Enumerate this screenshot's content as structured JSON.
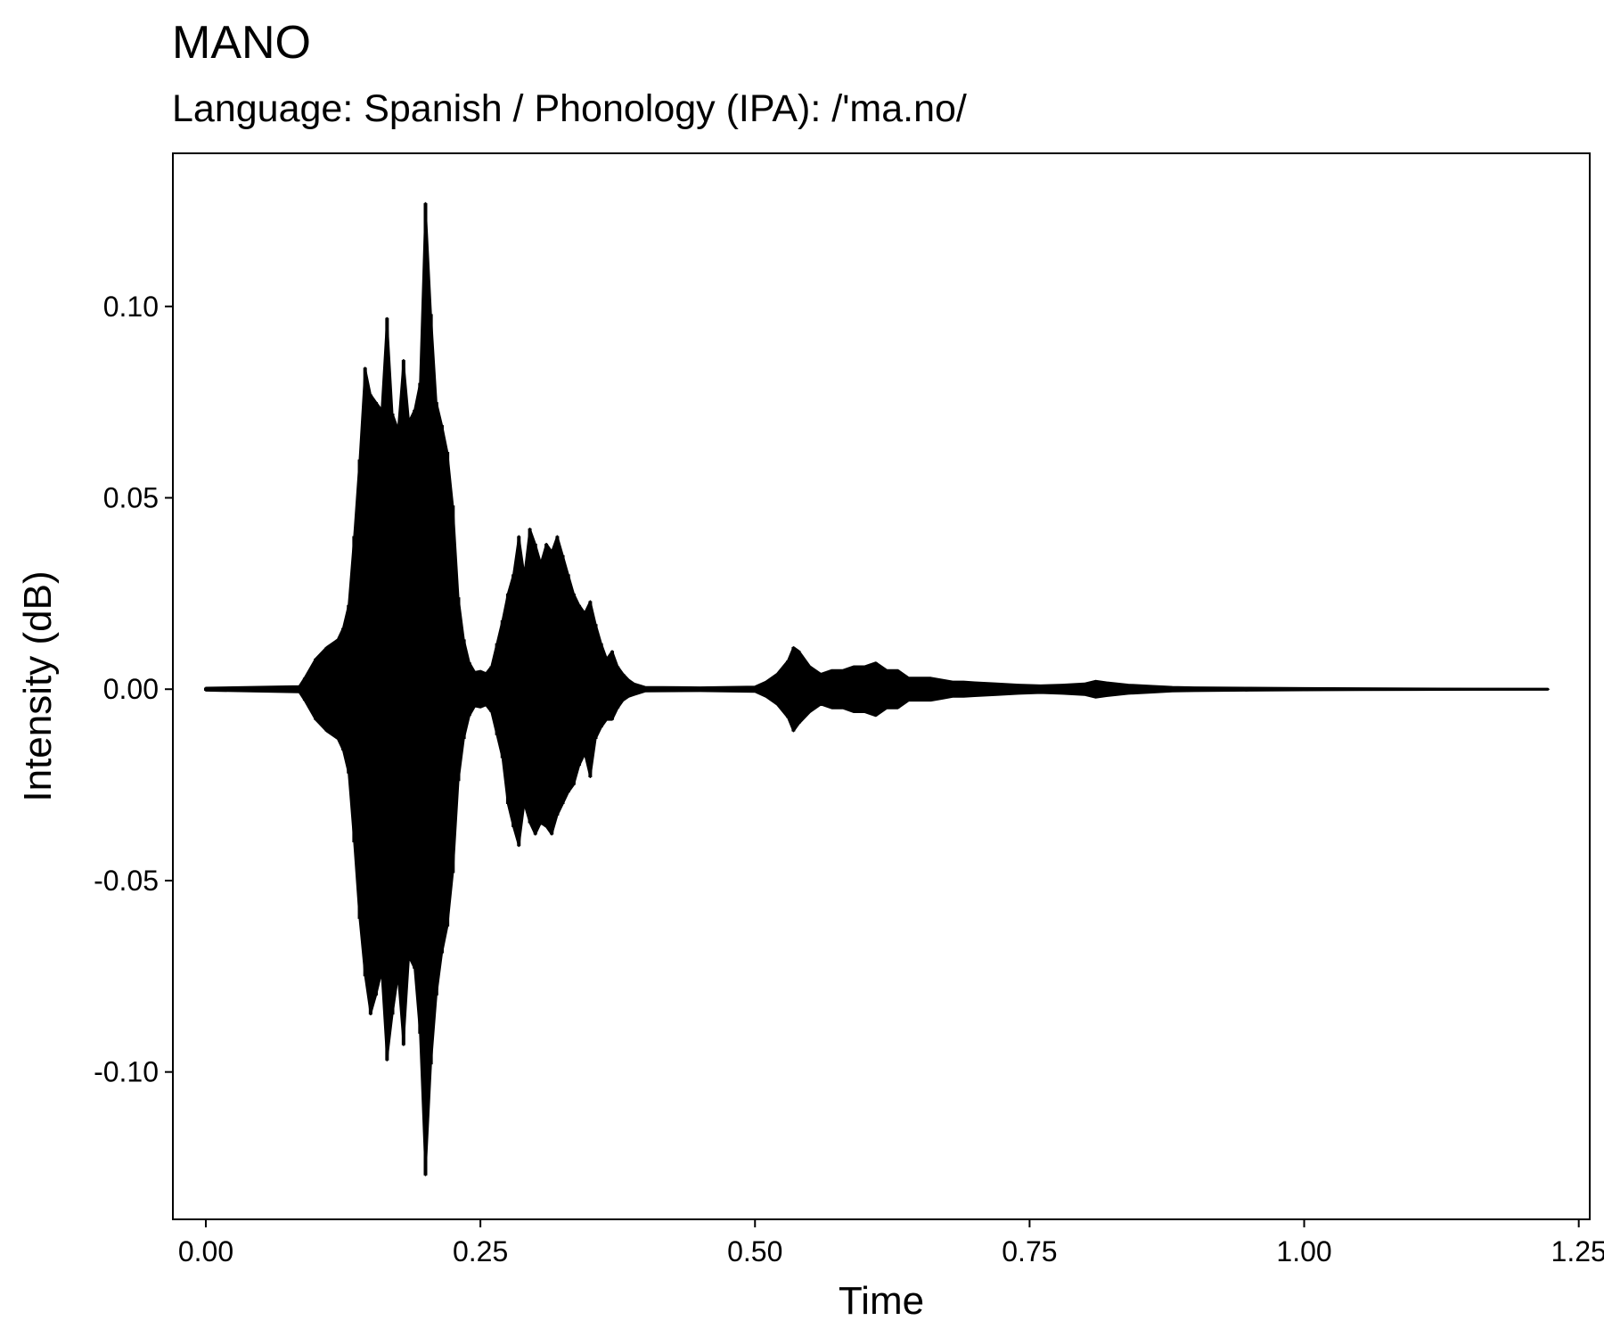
{
  "chart_data": {
    "type": "line",
    "title": "MANO",
    "subtitle": "Language: Spanish / Phonology (IPA): /'ma.no/",
    "xlabel": "Time",
    "ylabel": "Intensity (dB)",
    "xlim": [
      -0.03,
      1.26
    ],
    "ylim": [
      -0.1385,
      0.14
    ],
    "x_ticks": [
      0.0,
      0.25,
      0.5,
      0.75,
      1.0,
      1.25
    ],
    "x_tick_labels": [
      "0.00",
      "0.25",
      "0.50",
      "0.75",
      "1.00",
      "1.25"
    ],
    "y_ticks": [
      0.1,
      0.05,
      0.0,
      -0.05,
      -0.1
    ],
    "y_tick_labels": [
      "0.10",
      "0.05",
      "0.00",
      "-0.05",
      "-0.10"
    ],
    "grid": false,
    "legend": "none",
    "series": [
      {
        "color": "#000000",
        "x": [
          0.0,
          0.085,
          0.09,
          0.1,
          0.11,
          0.12,
          0.125,
          0.13,
          0.135,
          0.14,
          0.145,
          0.15,
          0.155,
          0.16,
          0.165,
          0.17,
          0.175,
          0.18,
          0.185,
          0.19,
          0.195,
          0.2,
          0.205,
          0.21,
          0.215,
          0.22,
          0.225,
          0.23,
          0.235,
          0.24,
          0.245,
          0.25,
          0.255,
          0.26,
          0.265,
          0.27,
          0.275,
          0.28,
          0.285,
          0.29,
          0.295,
          0.3,
          0.305,
          0.31,
          0.315,
          0.32,
          0.325,
          0.33,
          0.335,
          0.34,
          0.345,
          0.35,
          0.355,
          0.36,
          0.365,
          0.37,
          0.375,
          0.38,
          0.385,
          0.39,
          0.4,
          0.45,
          0.5,
          0.51,
          0.52,
          0.53,
          0.535,
          0.54,
          0.55,
          0.56,
          0.57,
          0.58,
          0.59,
          0.6,
          0.61,
          0.62,
          0.63,
          0.64,
          0.65,
          0.66,
          0.67,
          0.68,
          0.69,
          0.7,
          0.72,
          0.74,
          0.76,
          0.78,
          0.8,
          0.81,
          0.82,
          0.84,
          0.86,
          0.88,
          0.9,
          0.95,
          1.0,
          1.1,
          1.222
        ],
        "max": [
          0.0004,
          0.0008,
          0.003,
          0.008,
          0.011,
          0.013,
          0.016,
          0.022,
          0.04,
          0.06,
          0.084,
          0.077,
          0.075,
          0.073,
          0.097,
          0.072,
          0.068,
          0.086,
          0.07,
          0.073,
          0.08,
          0.127,
          0.098,
          0.075,
          0.069,
          0.062,
          0.048,
          0.024,
          0.013,
          0.007,
          0.0045,
          0.0048,
          0.0042,
          0.006,
          0.012,
          0.018,
          0.025,
          0.03,
          0.04,
          0.03,
          0.042,
          0.038,
          0.033,
          0.038,
          0.036,
          0.04,
          0.035,
          0.03,
          0.025,
          0.022,
          0.02,
          0.023,
          0.017,
          0.012,
          0.008,
          0.01,
          0.006,
          0.004,
          0.0025,
          0.0015,
          0.0006,
          0.0005,
          0.0007,
          0.002,
          0.004,
          0.0075,
          0.011,
          0.01,
          0.006,
          0.004,
          0.005,
          0.005,
          0.006,
          0.006,
          0.007,
          0.005,
          0.005,
          0.003,
          0.003,
          0.003,
          0.0025,
          0.002,
          0.002,
          0.0018,
          0.0015,
          0.0012,
          0.001,
          0.0012,
          0.0015,
          0.0022,
          0.0018,
          0.0012,
          0.0009,
          0.0006,
          0.0005,
          0.0004,
          0.0003,
          0.0002,
          0.0001
        ],
        "min": [
          -0.0004,
          -0.0008,
          -0.003,
          -0.008,
          -0.011,
          -0.013,
          -0.016,
          -0.022,
          -0.04,
          -0.06,
          -0.075,
          -0.085,
          -0.08,
          -0.074,
          -0.097,
          -0.085,
          -0.075,
          -0.093,
          -0.07,
          -0.073,
          -0.09,
          -0.127,
          -0.098,
          -0.08,
          -0.069,
          -0.062,
          -0.048,
          -0.024,
          -0.013,
          -0.007,
          -0.0045,
          -0.0048,
          -0.0042,
          -0.006,
          -0.012,
          -0.018,
          -0.03,
          -0.036,
          -0.041,
          -0.03,
          -0.035,
          -0.038,
          -0.035,
          -0.036,
          -0.038,
          -0.033,
          -0.03,
          -0.027,
          -0.025,
          -0.02,
          -0.017,
          -0.023,
          -0.013,
          -0.01,
          -0.008,
          -0.008,
          -0.005,
          -0.003,
          -0.002,
          -0.0015,
          -0.0006,
          -0.0005,
          -0.0007,
          -0.002,
          -0.004,
          -0.0075,
          -0.011,
          -0.009,
          -0.006,
          -0.004,
          -0.005,
          -0.005,
          -0.006,
          -0.006,
          -0.007,
          -0.005,
          -0.005,
          -0.003,
          -0.003,
          -0.003,
          -0.0025,
          -0.002,
          -0.002,
          -0.0018,
          -0.0015,
          -0.0012,
          -0.001,
          -0.0012,
          -0.0015,
          -0.0022,
          -0.0018,
          -0.0012,
          -0.0009,
          -0.0006,
          -0.0005,
          -0.0004,
          -0.0003,
          -0.0002,
          -0.0001
        ]
      }
    ]
  }
}
